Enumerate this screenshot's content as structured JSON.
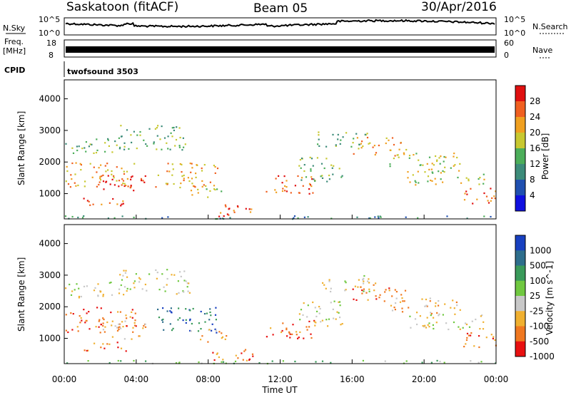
{
  "header": {
    "title": "Saskatoon (fitACF)",
    "beam": "Beam 05",
    "date": "30/Apr/2016"
  },
  "top_panels": {
    "nsky_label": "N.Sky",
    "nsky_tick_top": "10^5",
    "nsky_tick_bottom": "10^0",
    "nsearch_label": "N.Search",
    "nsearch_tick_top": "10^5",
    "nsearch_tick_bottom": "10^0",
    "freq_label": "Freq.",
    "freq_unit": "[MHz]",
    "freq_tick_top": "18",
    "freq_tick_bottom": "8",
    "nave_label": "Nave",
    "nave_tick_top": "60",
    "nave_tick_bottom": "0",
    "cpid_label": "CPID",
    "cpid_value": "twofsound 3503"
  },
  "chart_data": [
    {
      "type": "heatmap",
      "name": "power-panel",
      "ylabel": "Slant Range [km]",
      "yticks": [
        "1000",
        "2000",
        "3000",
        "4000"
      ],
      "ylim": [
        200,
        4600
      ],
      "colorbar_label": "Power [dB]",
      "colorbar_ticks": [
        "4",
        "8",
        "12",
        "16",
        "20",
        "24",
        "28"
      ],
      "colorbar_colors": [
        "#1010e0",
        "#2050b0",
        "#3d8c7a",
        "#4cae5a",
        "#c8c830",
        "#f0a020",
        "#f06020",
        "#e01010"
      ]
    },
    {
      "type": "heatmap",
      "name": "velocity-panel",
      "ylabel": "Slant Range [km]",
      "yticks": [
        "1000",
        "2000",
        "3000",
        "4000"
      ],
      "ylim": [
        200,
        4600
      ],
      "colorbar_label": "Velocity [m s^-1]",
      "colorbar_ticks": [
        "1000",
        "500",
        "100",
        "25",
        "-25",
        "-100",
        "-500",
        "-1000"
      ],
      "colorbar_colors": [
        "#1840c0",
        "#2e6e8c",
        "#3a9a5a",
        "#70c840",
        "#c8c8c8",
        "#f0b030",
        "#f07820",
        "#e81010"
      ]
    }
  ],
  "xaxis": {
    "ticks": [
      "00:00",
      "04:00",
      "08:00",
      "12:00",
      "16:00",
      "20:00",
      "00:00"
    ],
    "label": "Time UT"
  },
  "colors": {
    "accent_power_high": "#e01010",
    "accent_velocity_neg": "#f07820"
  }
}
